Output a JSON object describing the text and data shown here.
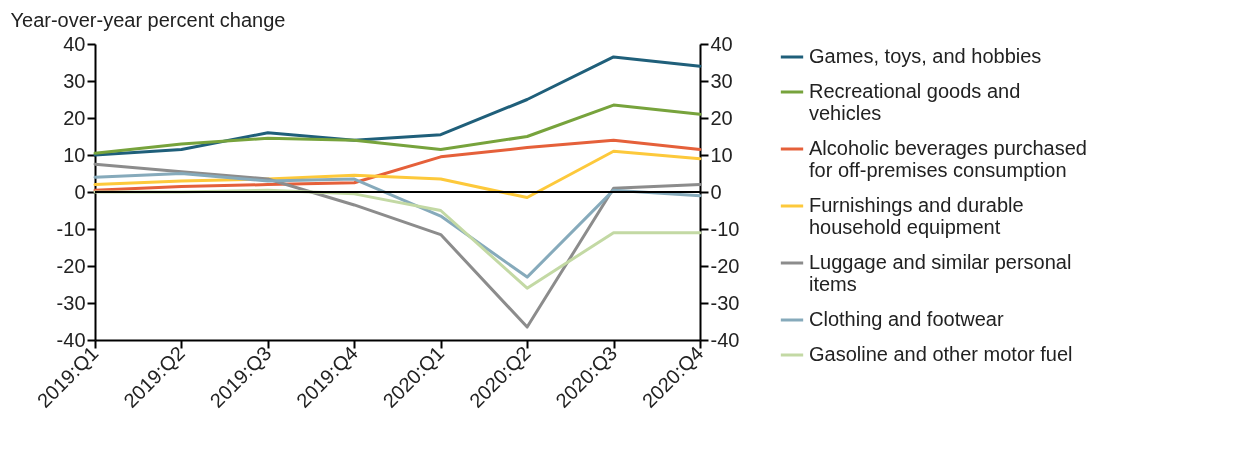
{
  "chart_data": {
    "type": "line",
    "ylabel": "Year-over-year percent change",
    "categories": [
      "2019:Q1",
      "2019:Q2",
      "2019:Q3",
      "2019:Q4",
      "2020:Q1",
      "2020:Q2",
      "2020:Q3",
      "2020:Q4"
    ],
    "series": [
      {
        "name": "Games, toys, and hobbies",
        "color": "#1f5f7a",
        "values": [
          10,
          11.5,
          16,
          14,
          15.5,
          25,
          36.5,
          34
        ]
      },
      {
        "name": "Recreational goods and vehicles",
        "color": "#77a33c",
        "values": [
          10.5,
          13,
          14.5,
          14,
          11.5,
          15,
          23.5,
          21
        ]
      },
      {
        "name": "Alcoholic beverages purchased for off-premises consumption",
        "color": "#e5603a",
        "values": [
          0.5,
          1.5,
          2,
          2.5,
          9.5,
          12,
          14,
          11.5
        ]
      },
      {
        "name": "Furnishings and durable household equipment",
        "color": "#fdc93b",
        "values": [
          2,
          3,
          3.5,
          4.5,
          3.5,
          -1.5,
          11,
          9
        ]
      },
      {
        "name": "Luggage and similar personal items",
        "color": "#8c8c8c",
        "values": [
          7.5,
          5.5,
          3.5,
          -3.5,
          -11.5,
          -36.5,
          1,
          2
        ]
      },
      {
        "name": "Clothing and footwear",
        "color": "#86aabb",
        "values": [
          4,
          5,
          3,
          3.5,
          -6.5,
          -23,
          0.5,
          -1
        ]
      },
      {
        "name": "Gasoline and other motor fuel",
        "color": "#c3d9a4",
        "values": [
          0,
          0,
          0.5,
          -0.5,
          -5,
          -26,
          -11,
          -11
        ]
      }
    ],
    "ylim": [
      -40,
      40
    ],
    "yticks": [
      -40,
      -30,
      -20,
      -10,
      0,
      10,
      20,
      30,
      40
    ],
    "y2lim": [
      -40,
      40
    ],
    "y2ticks": [
      -40,
      -30,
      -20,
      -10,
      0,
      10,
      20,
      30,
      40
    ],
    "ref_lines": [
      {
        "axis": "y",
        "value": 0,
        "color": "#000000"
      }
    ],
    "grid": false,
    "legend": "right",
    "marker": "none",
    "line_style": "solid"
  }
}
